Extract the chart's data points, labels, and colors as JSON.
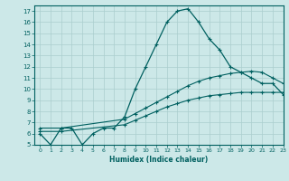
{
  "xlabel": "Humidex (Indice chaleur)",
  "ylabel": "",
  "bg_color": "#cce8e8",
  "line_color": "#006060",
  "grid_color": "#aacece",
  "xlim": [
    -0.5,
    23
  ],
  "ylim": [
    5,
    17.5
  ],
  "xticks": [
    0,
    1,
    2,
    3,
    4,
    5,
    6,
    7,
    8,
    9,
    10,
    11,
    12,
    13,
    14,
    15,
    16,
    17,
    18,
    19,
    20,
    21,
    22,
    23
  ],
  "yticks": [
    5,
    6,
    7,
    8,
    9,
    10,
    11,
    12,
    13,
    14,
    15,
    16,
    17
  ],
  "series1_x": [
    0,
    1,
    2,
    3,
    4,
    5,
    6,
    7,
    8,
    9,
    10,
    11,
    12,
    13,
    14,
    15,
    16,
    17,
    18,
    19,
    20,
    21,
    22,
    23
  ],
  "series1_y": [
    6,
    5,
    6.5,
    6.5,
    5,
    6,
    6.5,
    6.5,
    7.5,
    10,
    12,
    14,
    16,
    17,
    17.2,
    16,
    14.5,
    13.5,
    12,
    11.5,
    11,
    10.5,
    10.5,
    9.5
  ],
  "series2_x": [
    0,
    2,
    8,
    9,
    10,
    11,
    12,
    13,
    14,
    15,
    16,
    17,
    18,
    19,
    20,
    21,
    22,
    23
  ],
  "series2_y": [
    6.5,
    6.5,
    7.3,
    7.8,
    8.3,
    8.8,
    9.3,
    9.8,
    10.3,
    10.7,
    11.0,
    11.2,
    11.4,
    11.5,
    11.6,
    11.5,
    11.0,
    10.5
  ],
  "series3_x": [
    0,
    2,
    8,
    9,
    10,
    11,
    12,
    13,
    14,
    15,
    16,
    17,
    18,
    19,
    20,
    21,
    22,
    23
  ],
  "series3_y": [
    6.2,
    6.2,
    6.8,
    7.2,
    7.6,
    8.0,
    8.4,
    8.7,
    9.0,
    9.2,
    9.4,
    9.5,
    9.6,
    9.7,
    9.7,
    9.7,
    9.7,
    9.7
  ]
}
